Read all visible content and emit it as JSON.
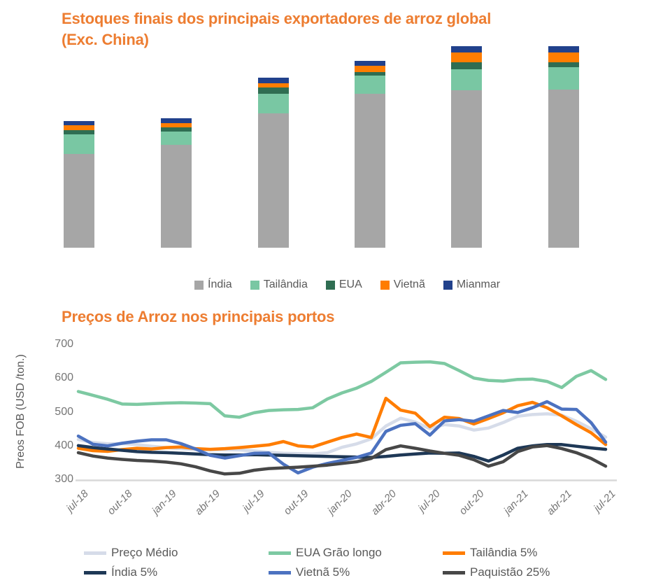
{
  "page": {
    "background": "#FFFFFF",
    "text_gray": "#595959",
    "tick_gray": "#757575",
    "axis_line_color": "#D9D9D9",
    "title_color": "#ED7D31"
  },
  "bar_chart": {
    "title_line1": "Estoques finais dos principais exportadores de arroz global",
    "title_line2": "(Exc. China)"
  },
  "line_chart": {
    "title": "Preços de Arroz nos principais portos",
    "ylabel": "Preos FOB (USD /ton.)"
  },
  "chart_data": [
    {
      "id": "estoques-finais",
      "type": "bar",
      "subtype": "stacked-vertical",
      "title": "Estoques finais dos principais exportadores de arroz global (Exc. China)",
      "note": "No axis scale or category labels are visible in the image; values below are measured segment heights in screen pixels (relative volumes).",
      "unit": "px",
      "categories": [
        "bar-1",
        "bar-2",
        "bar-3",
        "bar-4",
        "bar-5",
        "bar-6"
      ],
      "series": [
        {
          "name": "Índia",
          "color": "#A6A6A6",
          "values": [
            134,
            147,
            192,
            220,
            225,
            226
          ]
        },
        {
          "name": "Tailândia",
          "color": "#79C7A3",
          "values": [
            28,
            19,
            28,
            26,
            30,
            32
          ]
        },
        {
          "name": "EUA",
          "color": "#2F6D52",
          "values": [
            6,
            6,
            9,
            5,
            10,
            7
          ]
        },
        {
          "name": "Vietnã",
          "color": "#FF7D01",
          "values": [
            7,
            6,
            6,
            9,
            14,
            14
          ]
        },
        {
          "name": "Mianmar",
          "color": "#21418C",
          "values": [
            6,
            7,
            8,
            7,
            9,
            9
          ]
        }
      ],
      "legend_position": "bottom",
      "grid": false
    },
    {
      "id": "precos-arroz",
      "type": "line",
      "title": "Preços de Arroz nos principais portos",
      "xlabel": "",
      "ylabel": "Preos FOB (USD /ton.)",
      "ylim": [
        300,
        700
      ],
      "yticks": [
        700,
        600,
        500,
        400,
        300
      ],
      "x_tick_labels": [
        "jul-18",
        "out-18",
        "jan-19",
        "abr-19",
        "jul-19",
        "out-19",
        "jan-20",
        "abr-20",
        "jul-20",
        "out-20",
        "jan-21",
        "abr-21",
        "jul-21"
      ],
      "x_unit": "monthly points from jul-18 to jul-21 (37 points)",
      "grid": false,
      "legend_position": "bottom",
      "series": [
        {
          "name": "Preço Médio",
          "color": "#D6DCE9",
          "values": [
            418,
            409,
            405,
            406,
            403,
            398,
            394,
            391,
            388,
            387,
            388,
            387,
            384,
            380,
            377,
            376,
            375,
            379,
            395,
            405,
            420,
            458,
            481,
            470,
            450,
            462,
            458,
            446,
            452,
            468,
            487,
            492,
            494,
            490,
            472,
            450,
            425
          ]
        },
        {
          "name": "EUA Grão longo",
          "color": "#7DC9A2",
          "values": [
            560,
            549,
            537,
            523,
            522,
            524,
            526,
            527,
            526,
            524,
            488,
            484,
            497,
            504,
            506,
            507,
            512,
            538,
            556,
            570,
            590,
            617,
            645,
            647,
            648,
            643,
            622,
            600,
            593,
            591,
            596,
            597,
            590,
            572,
            605,
            622,
            596
          ]
        },
        {
          "name": "Tailândia 5%",
          "color": "#FF7D01",
          "values": [
            392,
            385,
            383,
            388,
            392,
            390,
            394,
            396,
            391,
            389,
            391,
            394,
            398,
            402,
            412,
            399,
            396,
            410,
            424,
            434,
            424,
            540,
            505,
            496,
            456,
            484,
            480,
            464,
            480,
            497,
            518,
            528,
            512,
            488,
            462,
            438,
            403
          ]
        },
        {
          "name": "Índia 5%",
          "color": "#1E3856",
          "values": [
            400,
            394,
            390,
            386,
            382,
            380,
            379,
            377,
            375,
            373,
            372,
            372,
            373,
            372,
            371,
            370,
            369,
            368,
            367,
            366,
            365,
            368,
            372,
            375,
            378,
            377,
            378,
            368,
            354,
            372,
            392,
            399,
            403,
            403,
            398,
            393,
            389
          ]
        },
        {
          "name": "Vietnã 5%",
          "color": "#4C72C0",
          "values": [
            428,
            404,
            399,
            407,
            413,
            417,
            417,
            406,
            390,
            371,
            363,
            370,
            377,
            378,
            345,
            319,
            336,
            347,
            356,
            365,
            378,
            442,
            460,
            465,
            431,
            473,
            477,
            472,
            488,
            504,
            498,
            512,
            530,
            508,
            507,
            468,
            410
          ]
        },
        {
          "name": "Paquistão 25%",
          "color": "#474747",
          "values": [
            379,
            369,
            363,
            359,
            356,
            354,
            351,
            346,
            337,
            325,
            316,
            318,
            327,
            332,
            334,
            336,
            339,
            342,
            347,
            352,
            362,
            388,
            399,
            392,
            384,
            377,
            371,
            358,
            339,
            352,
            382,
            396,
            400,
            391,
            379,
            362,
            339
          ]
        }
      ]
    }
  ]
}
